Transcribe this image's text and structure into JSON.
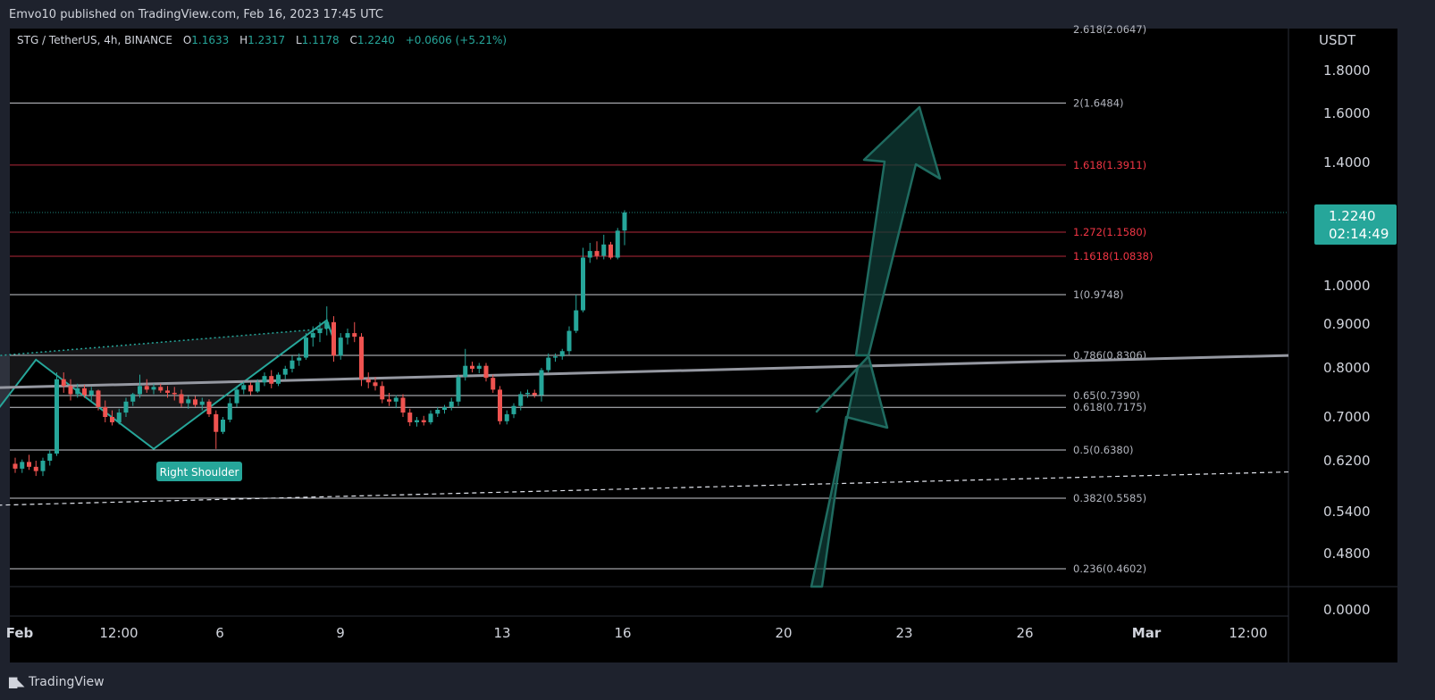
{
  "header": {
    "publisher": "Emvo10 published on TradingView.com, Feb 16, 2023 17:45 UTC"
  },
  "legend": {
    "symbol": "STG / TetherUS, 4h, BINANCE",
    "open_label": "O",
    "open": "1.1633",
    "high_label": "H",
    "high": "1.2317",
    "low_label": "L",
    "low": "1.1178",
    "close_label": "C",
    "close": "1.2240",
    "change": "+0.0606 (+5.21%)"
  },
  "price_axis": {
    "unit": "USDT",
    "current_price": "1.2240",
    "countdown": "02:14:49"
  },
  "footer": {
    "brand": "TradingView"
  },
  "annotation": {
    "label": "Right Shoulder"
  },
  "colors": {
    "bull": "#26a69a",
    "bear": "#ef5350",
    "fib_red": "#f23645",
    "pattern": "#26a69a",
    "trendline": "#9598a1"
  },
  "chart_data": {
    "type": "candlestick",
    "yscale": "log-like",
    "y_tick_labels": [
      "1.8000",
      "1.6000",
      "1.4000",
      "1.0000",
      "0.9000",
      "0.8000",
      "0.7000",
      "0.6200",
      "0.5400",
      "0.4800",
      "0.0000"
    ],
    "x_tick_labels": [
      "Feb",
      "12:00",
      "6",
      "9",
      "13",
      "16",
      "20",
      "23",
      "26",
      "Mar",
      "12:00"
    ],
    "fib_levels": [
      {
        "label": "2.618(2.0647)",
        "value": 2.0647,
        "color": "gray",
        "line": false
      },
      {
        "label": "2(1.6484)",
        "value": 1.6484,
        "color": "gray",
        "line": true
      },
      {
        "label": "1.618(1.3911)",
        "value": 1.3911,
        "color": "red",
        "line": true
      },
      {
        "label": "1.272(1.1580)",
        "value": 1.158,
        "color": "red",
        "line": true
      },
      {
        "label": "1.1618(1.0838)",
        "value": 1.0838,
        "color": "red",
        "line": true
      },
      {
        "label": "1(0.9748)",
        "value": 0.9748,
        "color": "gray",
        "line": true
      },
      {
        "label": "0.786(0.8306)",
        "value": 0.8306,
        "color": "gray",
        "line": true
      },
      {
        "label": "0.65(0.7390)",
        "value": 0.739,
        "color": "gray",
        "line": true
      },
      {
        "label": "0.618(0.7175)",
        "value": 0.7175,
        "color": "gray",
        "line": true
      },
      {
        "label": "0.5(0.6380)",
        "value": 0.638,
        "color": "gray",
        "line": true
      },
      {
        "label": "0.382(0.5585)",
        "value": 0.5585,
        "color": "gray",
        "line": true
      },
      {
        "label": "0.236(0.4602)",
        "value": 0.4602,
        "color": "gray",
        "line": true
      }
    ],
    "candles": [
      {
        "t": 0,
        "o": 0.615,
        "h": 0.625,
        "l": 0.6,
        "c": 0.607
      },
      {
        "t": 1,
        "o": 0.607,
        "h": 0.622,
        "l": 0.6,
        "c": 0.618
      },
      {
        "t": 2,
        "o": 0.618,
        "h": 0.63,
        "l": 0.605,
        "c": 0.61
      },
      {
        "t": 3,
        "o": 0.61,
        "h": 0.62,
        "l": 0.595,
        "c": 0.603
      },
      {
        "t": 4,
        "o": 0.603,
        "h": 0.625,
        "l": 0.595,
        "c": 0.62
      },
      {
        "t": 5,
        "o": 0.62,
        "h": 0.638,
        "l": 0.612,
        "c": 0.632
      },
      {
        "t": 6,
        "o": 0.632,
        "h": 0.79,
        "l": 0.628,
        "c": 0.775
      },
      {
        "t": 7,
        "o": 0.775,
        "h": 0.79,
        "l": 0.745,
        "c": 0.76
      },
      {
        "t": 8,
        "o": 0.76,
        "h": 0.775,
        "l": 0.73,
        "c": 0.742
      },
      {
        "t": 9,
        "o": 0.742,
        "h": 0.765,
        "l": 0.735,
        "c": 0.755
      },
      {
        "t": 10,
        "o": 0.755,
        "h": 0.762,
        "l": 0.735,
        "c": 0.74
      },
      {
        "t": 11,
        "o": 0.74,
        "h": 0.758,
        "l": 0.73,
        "c": 0.75
      },
      {
        "t": 12,
        "o": 0.75,
        "h": 0.752,
        "l": 0.712,
        "c": 0.718
      },
      {
        "t": 13,
        "o": 0.718,
        "h": 0.73,
        "l": 0.69,
        "c": 0.7
      },
      {
        "t": 14,
        "o": 0.7,
        "h": 0.712,
        "l": 0.684,
        "c": 0.69
      },
      {
        "t": 15,
        "o": 0.69,
        "h": 0.715,
        "l": 0.686,
        "c": 0.708
      },
      {
        "t": 16,
        "o": 0.708,
        "h": 0.735,
        "l": 0.7,
        "c": 0.728
      },
      {
        "t": 17,
        "o": 0.728,
        "h": 0.745,
        "l": 0.72,
        "c": 0.742
      },
      {
        "t": 18,
        "o": 0.742,
        "h": 0.785,
        "l": 0.735,
        "c": 0.76
      },
      {
        "t": 19,
        "o": 0.76,
        "h": 0.775,
        "l": 0.745,
        "c": 0.752
      },
      {
        "t": 20,
        "o": 0.752,
        "h": 0.765,
        "l": 0.742,
        "c": 0.758
      },
      {
        "t": 21,
        "o": 0.758,
        "h": 0.765,
        "l": 0.745,
        "c": 0.75
      },
      {
        "t": 22,
        "o": 0.75,
        "h": 0.76,
        "l": 0.735,
        "c": 0.745
      },
      {
        "t": 23,
        "o": 0.745,
        "h": 0.758,
        "l": 0.73,
        "c": 0.742
      },
      {
        "t": 24,
        "o": 0.742,
        "h": 0.752,
        "l": 0.718,
        "c": 0.725
      },
      {
        "t": 25,
        "o": 0.725,
        "h": 0.738,
        "l": 0.715,
        "c": 0.732
      },
      {
        "t": 26,
        "o": 0.732,
        "h": 0.738,
        "l": 0.718,
        "c": 0.722
      },
      {
        "t": 27,
        "o": 0.722,
        "h": 0.735,
        "l": 0.712,
        "c": 0.728
      },
      {
        "t": 28,
        "o": 0.728,
        "h": 0.732,
        "l": 0.7,
        "c": 0.705
      },
      {
        "t": 29,
        "o": 0.705,
        "h": 0.712,
        "l": 0.64,
        "c": 0.672
      },
      {
        "t": 30,
        "o": 0.672,
        "h": 0.7,
        "l": 0.668,
        "c": 0.695
      },
      {
        "t": 31,
        "o": 0.695,
        "h": 0.735,
        "l": 0.69,
        "c": 0.725
      },
      {
        "t": 32,
        "o": 0.725,
        "h": 0.76,
        "l": 0.718,
        "c": 0.752
      },
      {
        "t": 33,
        "o": 0.752,
        "h": 0.77,
        "l": 0.742,
        "c": 0.762
      },
      {
        "t": 34,
        "o": 0.762,
        "h": 0.768,
        "l": 0.74,
        "c": 0.748
      },
      {
        "t": 35,
        "o": 0.748,
        "h": 0.775,
        "l": 0.745,
        "c": 0.768
      },
      {
        "t": 36,
        "o": 0.768,
        "h": 0.79,
        "l": 0.76,
        "c": 0.782
      },
      {
        "t": 37,
        "o": 0.782,
        "h": 0.795,
        "l": 0.755,
        "c": 0.765
      },
      {
        "t": 38,
        "o": 0.765,
        "h": 0.79,
        "l": 0.76,
        "c": 0.785
      },
      {
        "t": 39,
        "o": 0.785,
        "h": 0.805,
        "l": 0.775,
        "c": 0.798
      },
      {
        "t": 40,
        "o": 0.798,
        "h": 0.83,
        "l": 0.79,
        "c": 0.818
      },
      {
        "t": 41,
        "o": 0.818,
        "h": 0.835,
        "l": 0.805,
        "c": 0.825
      },
      {
        "t": 42,
        "o": 0.825,
        "h": 0.88,
        "l": 0.82,
        "c": 0.87
      },
      {
        "t": 43,
        "o": 0.87,
        "h": 0.895,
        "l": 0.85,
        "c": 0.88
      },
      {
        "t": 44,
        "o": 0.88,
        "h": 0.905,
        "l": 0.86,
        "c": 0.89
      },
      {
        "t": 45,
        "o": 0.89,
        "h": 0.945,
        "l": 0.875,
        "c": 0.905
      },
      {
        "t": 46,
        "o": 0.905,
        "h": 0.92,
        "l": 0.815,
        "c": 0.83
      },
      {
        "t": 47,
        "o": 0.83,
        "h": 0.88,
        "l": 0.82,
        "c": 0.87
      },
      {
        "t": 48,
        "o": 0.87,
        "h": 0.89,
        "l": 0.855,
        "c": 0.88
      },
      {
        "t": 49,
        "o": 0.88,
        "h": 0.905,
        "l": 0.86,
        "c": 0.872
      },
      {
        "t": 50,
        "o": 0.872,
        "h": 0.88,
        "l": 0.76,
        "c": 0.775
      },
      {
        "t": 51,
        "o": 0.775,
        "h": 0.79,
        "l": 0.755,
        "c": 0.768
      },
      {
        "t": 52,
        "o": 0.768,
        "h": 0.78,
        "l": 0.75,
        "c": 0.76
      },
      {
        "t": 53,
        "o": 0.76,
        "h": 0.77,
        "l": 0.725,
        "c": 0.732
      },
      {
        "t": 54,
        "o": 0.732,
        "h": 0.745,
        "l": 0.72,
        "c": 0.728
      },
      {
        "t": 55,
        "o": 0.728,
        "h": 0.74,
        "l": 0.716,
        "c": 0.735
      },
      {
        "t": 56,
        "o": 0.735,
        "h": 0.742,
        "l": 0.7,
        "c": 0.708
      },
      {
        "t": 57,
        "o": 0.708,
        "h": 0.715,
        "l": 0.683,
        "c": 0.69
      },
      {
        "t": 58,
        "o": 0.69,
        "h": 0.7,
        "l": 0.682,
        "c": 0.694
      },
      {
        "t": 59,
        "o": 0.694,
        "h": 0.702,
        "l": 0.684,
        "c": 0.69
      },
      {
        "t": 60,
        "o": 0.69,
        "h": 0.712,
        "l": 0.686,
        "c": 0.706
      },
      {
        "t": 61,
        "o": 0.706,
        "h": 0.718,
        "l": 0.7,
        "c": 0.713
      },
      {
        "t": 62,
        "o": 0.713,
        "h": 0.722,
        "l": 0.706,
        "c": 0.718
      },
      {
        "t": 63,
        "o": 0.718,
        "h": 0.735,
        "l": 0.712,
        "c": 0.728
      },
      {
        "t": 64,
        "o": 0.728,
        "h": 0.785,
        "l": 0.72,
        "c": 0.78
      },
      {
        "t": 65,
        "o": 0.78,
        "h": 0.845,
        "l": 0.772,
        "c": 0.805
      },
      {
        "t": 66,
        "o": 0.805,
        "h": 0.815,
        "l": 0.79,
        "c": 0.798
      },
      {
        "t": 67,
        "o": 0.798,
        "h": 0.812,
        "l": 0.788,
        "c": 0.805
      },
      {
        "t": 68,
        "o": 0.805,
        "h": 0.812,
        "l": 0.77,
        "c": 0.778
      },
      {
        "t": 69,
        "o": 0.778,
        "h": 0.785,
        "l": 0.745,
        "c": 0.752
      },
      {
        "t": 70,
        "o": 0.752,
        "h": 0.76,
        "l": 0.686,
        "c": 0.692
      },
      {
        "t": 71,
        "o": 0.692,
        "h": 0.712,
        "l": 0.686,
        "c": 0.705
      },
      {
        "t": 72,
        "o": 0.705,
        "h": 0.725,
        "l": 0.698,
        "c": 0.72
      },
      {
        "t": 73,
        "o": 0.72,
        "h": 0.748,
        "l": 0.712,
        "c": 0.742
      },
      {
        "t": 74,
        "o": 0.742,
        "h": 0.752,
        "l": 0.735,
        "c": 0.745
      },
      {
        "t": 75,
        "o": 0.745,
        "h": 0.752,
        "l": 0.735,
        "c": 0.74
      },
      {
        "t": 76,
        "o": 0.74,
        "h": 0.8,
        "l": 0.728,
        "c": 0.795
      },
      {
        "t": 77,
        "o": 0.795,
        "h": 0.835,
        "l": 0.79,
        "c": 0.825
      },
      {
        "t": 78,
        "o": 0.825,
        "h": 0.835,
        "l": 0.815,
        "c": 0.828
      },
      {
        "t": 79,
        "o": 0.828,
        "h": 0.845,
        "l": 0.82,
        "c": 0.84
      },
      {
        "t": 80,
        "o": 0.84,
        "h": 0.895,
        "l": 0.832,
        "c": 0.885
      },
      {
        "t": 81,
        "o": 0.885,
        "h": 0.975,
        "l": 0.88,
        "c": 0.935
      },
      {
        "t": 82,
        "o": 0.935,
        "h": 1.11,
        "l": 0.93,
        "c": 1.08
      },
      {
        "t": 83,
        "o": 1.08,
        "h": 1.125,
        "l": 1.065,
        "c": 1.1
      },
      {
        "t": 84,
        "o": 1.1,
        "h": 1.13,
        "l": 1.075,
        "c": 1.085
      },
      {
        "t": 85,
        "o": 1.085,
        "h": 1.15,
        "l": 1.075,
        "c": 1.12
      },
      {
        "t": 86,
        "o": 1.12,
        "h": 1.128,
        "l": 1.075,
        "c": 1.08
      },
      {
        "t": 87,
        "o": 1.08,
        "h": 1.172,
        "l": 1.075,
        "c": 1.163
      },
      {
        "t": 88,
        "o": 1.1633,
        "h": 1.2317,
        "l": 1.1178,
        "c": 1.224
      }
    ],
    "trendlines": [
      {
        "name": "neckline",
        "from": [
          -6,
          0.755
        ],
        "to": [
          240,
          0.852
        ]
      },
      {
        "name": "lower-dashed",
        "from": [
          -6,
          0.548
        ],
        "to": [
          240,
          0.618
        ]
      },
      {
        "name": "upper-dotted",
        "from": [
          -6,
          0.825
        ],
        "to": [
          45,
          0.89
        ]
      }
    ],
    "pattern_points": [
      [
        -6,
        0.655
      ],
      [
        3,
        0.82
      ],
      [
        20,
        0.64
      ],
      [
        45,
        0.91
      ],
      [
        46,
        0.865
      ]
    ]
  }
}
